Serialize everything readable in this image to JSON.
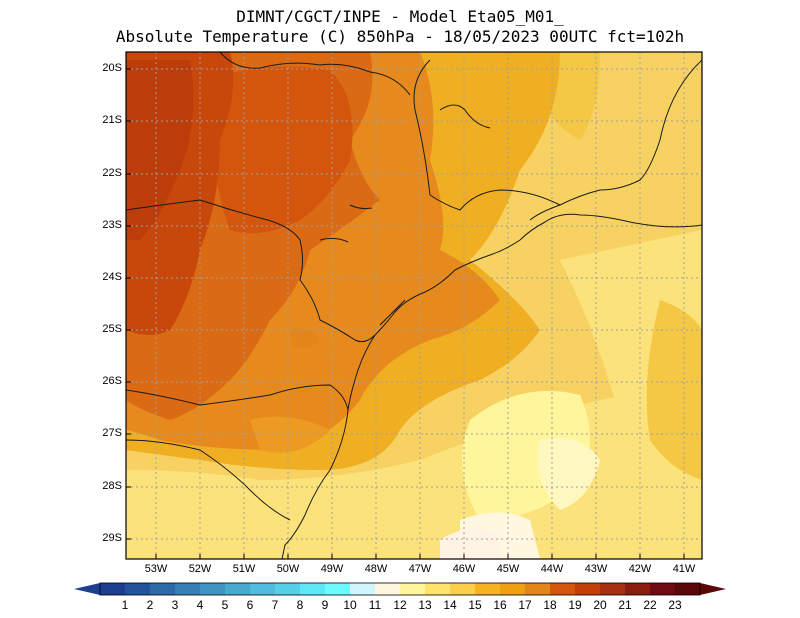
{
  "title": {
    "line1": "DIMNT/CGCT/INPE -  Model Eta05_M01_",
    "line2": "Absolute Temperature (C) 850hPa -  18/05/2023 00UTC fct=102h"
  },
  "map": {
    "lat_labels": [
      "20S",
      "21S",
      "22S",
      "23S",
      "24S",
      "25S",
      "26S",
      "27S",
      "28S",
      "29S"
    ],
    "lon_labels": [
      "53W",
      "52W",
      "51W",
      "50W",
      "49W",
      "48W",
      "47W",
      "46W",
      "45W",
      "44W",
      "43W",
      "42W",
      "41W"
    ]
  },
  "colorbar": {
    "labels": [
      "1",
      "2",
      "3",
      "4",
      "5",
      "6",
      "7",
      "8",
      "9",
      "10",
      "11",
      "12",
      "13",
      "14",
      "15",
      "16",
      "17",
      "18",
      "19",
      "20",
      "21",
      "22",
      "23"
    ],
    "colors": [
      "#1d3f8f",
      "#23549b",
      "#2c6aa8",
      "#367fb5",
      "#3f94c2",
      "#48a9cf",
      "#50bddc",
      "#55d0e8",
      "#5ee8f5",
      "#6bfbff",
      "#d2f6ff",
      "#fff7df",
      "#fff59a",
      "#ffe36a",
      "#fbcf4c",
      "#f5b320",
      "#eea00f",
      "#e3851b",
      "#d4560c",
      "#c33e08",
      "#a83012",
      "#8a1c10",
      "#6e0b14",
      "#5a0808"
    ],
    "under_color": "#1d3f8f",
    "over_color": "#5a0808"
  }
}
